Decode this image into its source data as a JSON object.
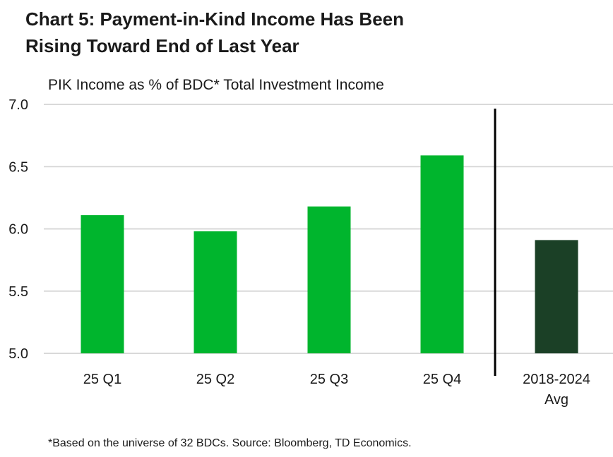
{
  "title_lines": [
    "Chart 5: Payment-in-Kind Income Has Been",
    "Rising Toward End of Last Year"
  ],
  "footnote": "*Based on the universe of 32 BDCs. Source: Bloomberg, TD Economics.",
  "colors": {
    "bar": "#00b52d",
    "avg_bar": "#1b4026",
    "grid": "#d9d9d9",
    "divider": "#000000"
  },
  "chart_data": {
    "type": "bar",
    "title": "Chart 5: Payment-in-Kind Income Has Been Rising Toward End of Last Year",
    "ylabel": "PIK Income as % of BDC* Total Investment Income",
    "xlabel": "",
    "categories": [
      "25 Q1",
      "25 Q2",
      "25 Q3",
      "25 Q4",
      "2018-2024 Avg"
    ],
    "values": [
      6.11,
      5.98,
      6.18,
      6.59,
      5.91
    ],
    "ylim": [
      5.0,
      7.0
    ],
    "yticks": [
      "5.0",
      "5.5",
      "6.0",
      "6.5",
      "7.0"
    ],
    "grid": true,
    "legend": "none"
  }
}
